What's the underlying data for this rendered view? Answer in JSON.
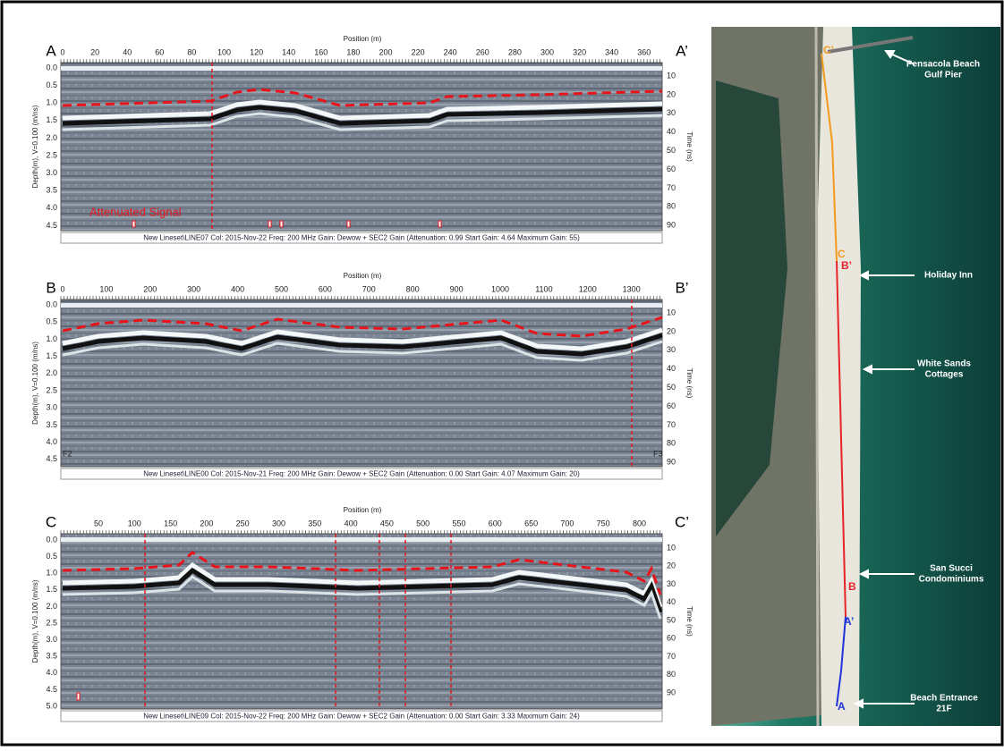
{
  "panels": [
    {
      "left_label": "A",
      "right_label": "A’",
      "x_axis_title": "Position (m)",
      "y_axis_title": "Depth(m), V=0.100 (m/ns)",
      "y2_axis_title": "Time (ns)",
      "x_ticks": [
        "0",
        "20",
        "40",
        "60",
        "80",
        "100",
        "120",
        "140",
        "160",
        "180",
        "200",
        "220",
        "240",
        "260",
        "280",
        "300",
        "320",
        "340",
        "360"
      ],
      "y_ticks": [
        "0.0",
        "0.5",
        "1.0",
        "1.5",
        "2.0",
        "2.5",
        "3.0",
        "3.5",
        "4.0",
        "4.5"
      ],
      "y2_ticks": [
        "10",
        "20",
        "30",
        "40",
        "50",
        "60",
        "70",
        "80",
        "90"
      ],
      "annotation": "Attenuated Signal",
      "footer": "New Lineset\\LINE07  Col: 2015-Nov-22  Freq: 200 MHz  Gain: Dewow + SEC2 Gain (Attenuation: 0.99  Start Gain: 4.64  Maximum Gain: 55)"
    },
    {
      "left_label": "B",
      "right_label": "B’",
      "x_axis_title": "Position (m)",
      "y_axis_title": "Depth(m), V=0.100 (m/ns)",
      "y2_axis_title": "Time (ns)",
      "x_ticks": [
        "0",
        "100",
        "200",
        "300",
        "400",
        "500",
        "600",
        "700",
        "800",
        "900",
        "1000",
        "1100",
        "1200",
        "1300"
      ],
      "y_ticks": [
        "0.0",
        "0.5",
        "1.0",
        "1.5",
        "2.0",
        "2.5",
        "3.0",
        "3.5",
        "4.0",
        "4.5"
      ],
      "y2_ticks": [
        "10",
        "20",
        "30",
        "40",
        "50",
        "60",
        "70",
        "80",
        "90"
      ],
      "markers": [
        "F2",
        "F3"
      ],
      "footer": "New Lineset\\LINE00  Col: 2015-Nov-21  Freq: 200 MHz  Gain: Dewow + SEC2 Gain (Attenuation: 0.00  Start Gain: 4.07  Maximum Gain: 20)"
    },
    {
      "left_label": "C",
      "right_label": "C’",
      "x_axis_title": "Position (m)",
      "y_axis_title": "Depth(m), V=0.100 (m/ns)",
      "y2_axis_title": "Time (ns)",
      "x_ticks": [
        "50",
        "100",
        "150",
        "200",
        "250",
        "300",
        "350",
        "400",
        "450",
        "500",
        "550",
        "600",
        "650",
        "700",
        "750",
        "800"
      ],
      "y_ticks": [
        "0.0",
        "0.5",
        "1.0",
        "1.5",
        "2.0",
        "2.5",
        "3.0",
        "3.5",
        "4.0",
        "4.5",
        "5.0"
      ],
      "y2_ticks": [
        "10",
        "20",
        "30",
        "40",
        "50",
        "60",
        "70",
        "80",
        "90"
      ],
      "footer": "New Lineset\\LINE09  Col: 2015-Nov-22  Freq: 200 MHz  Gain: Dewow + SEC2 Gain (Attenuation: 0.00  Start Gain: 3.33  Maximum Gain: 24)"
    }
  ],
  "map": {
    "line_labels": [
      "C’",
      "C",
      "B’",
      "B",
      "A’",
      "A"
    ],
    "landmarks": [
      [
        "Pensacola Beach",
        "Gulf Pier"
      ],
      [
        "Holiday Inn"
      ],
      [
        "White Sands",
        "Cottages"
      ],
      [
        "San Succi",
        "Condominiums"
      ],
      [
        "Beach Entrance",
        "21F"
      ]
    ]
  }
}
